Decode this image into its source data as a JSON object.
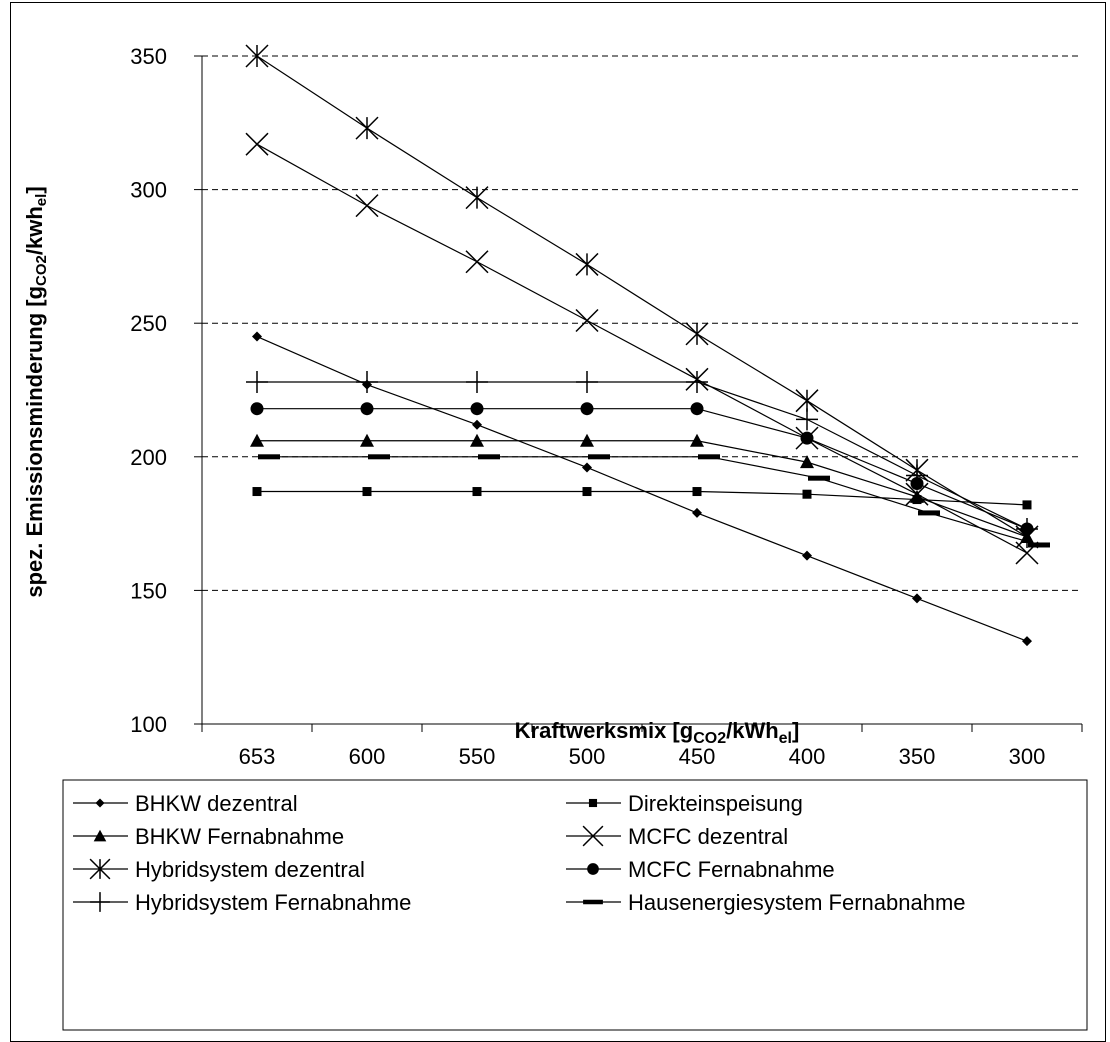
{
  "chart_data": {
    "type": "line",
    "categories": [
      "653",
      "600",
      "550",
      "500",
      "450",
      "400",
      "350",
      "300"
    ],
    "xlabel": "Kraftwerksmix [gCO2/kWhel]",
    "xlabel_main": "Kraftwerksmix [g",
    "xlabel_sub1": "CO2",
    "xlabel_mid": "/kWh",
    "xlabel_sub2": "el",
    "xlabel_end": "]",
    "ylabel": "spez. Emissionsminderung [gCO2/kwhel]",
    "ylabel_main": "spez. Emissionsminderung [g",
    "ylabel_sub1": "CO2",
    "ylabel_mid": "/kwh",
    "ylabel_sub2": "el",
    "ylabel_end": "]",
    "ylim": [
      100,
      350
    ],
    "yticks": [
      100,
      150,
      200,
      250,
      300,
      350
    ],
    "grid": "horizontal dashed",
    "legend_position": "bottom",
    "series": [
      {
        "name": "BHKW dezentral",
        "marker": "diamond",
        "values": [
          245,
          227,
          212,
          196,
          179,
          163,
          147,
          131
        ]
      },
      {
        "name": "Direkteinspeisung",
        "marker": "square",
        "values": [
          187,
          187,
          187,
          187,
          187,
          186,
          184,
          182
        ]
      },
      {
        "name": "BHKW Fernabnahme",
        "marker": "triangle",
        "values": [
          206,
          206,
          206,
          206,
          206,
          198,
          185,
          170
        ]
      },
      {
        "name": "MCFC dezentral",
        "marker": "x",
        "values": [
          317,
          294,
          273,
          251,
          229,
          207,
          186,
          164
        ]
      },
      {
        "name": "Hybridsystem dezentral",
        "marker": "star",
        "values": [
          350,
          323,
          297,
          272,
          246,
          221,
          195,
          170
        ]
      },
      {
        "name": "MCFC Fernabnahme",
        "marker": "circle",
        "values": [
          218,
          218,
          218,
          218,
          218,
          207,
          190,
          173
        ]
      },
      {
        "name": "Hybridsystem Fernabnahme",
        "marker": "plus",
        "values": [
          228,
          228,
          228,
          228,
          228,
          214,
          193,
          173
        ]
      },
      {
        "name": "Hausenergiesystem Fernabnahme",
        "marker": "dash",
        "values": [
          200,
          200,
          200,
          200,
          200,
          192,
          179,
          167
        ]
      }
    ]
  }
}
